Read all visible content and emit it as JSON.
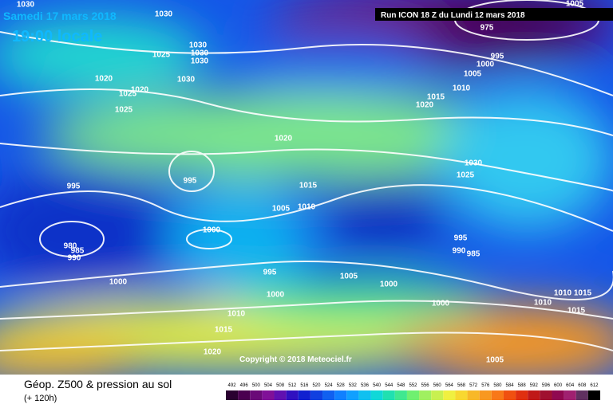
{
  "header": {
    "date": "Samedi 17 mars 2018",
    "time": "19:00 locale",
    "run": "Run ICON 18 Z du Lundi 12 mars 2018"
  },
  "copyright": "Copyright © 2018 Meteociel.fr",
  "footer": {
    "title": "Géop. Z500 & pression au sol",
    "lead": "(+ 120h)"
  },
  "isobar_labels": [
    "1030",
    "1030",
    "1005",
    "1025",
    "1030",
    "1030",
    "1030",
    "1030",
    "1020",
    "1020",
    "1025",
    "1025",
    "975",
    "995",
    "1000",
    "1005",
    "1010",
    "1015",
    "1020",
    "1020",
    "1030",
    "1025",
    "995",
    "995",
    "1015",
    "1005",
    "1010",
    "1000",
    "980",
    "985",
    "990",
    "995",
    "990",
    "985",
    "995",
    "1005",
    "1000",
    "1000",
    "1000",
    "1000",
    "1010",
    "1015",
    "1020",
    "1005",
    "1010",
    "1010",
    "1015",
    "1015"
  ],
  "legend": {
    "labels": [
      "492",
      "496",
      "500",
      "504",
      "508",
      "512",
      "516",
      "520",
      "524",
      "528",
      "532",
      "536",
      "540",
      "544",
      "548",
      "552",
      "556",
      "560",
      "564",
      "568",
      "572",
      "576",
      "580",
      "584",
      "588",
      "592",
      "596",
      "600",
      "604",
      "608",
      "612"
    ],
    "colors": [
      "#2a0030",
      "#4a0050",
      "#6a0a78",
      "#801098",
      "#6010b0",
      "#3010c0",
      "#1020d0",
      "#1040e0",
      "#1060f0",
      "#1080ff",
      "#10a0ff",
      "#10c0f0",
      "#10d8d8",
      "#20e0b0",
      "#40e890",
      "#70f070",
      "#a0f060",
      "#c8f050",
      "#f0f040",
      "#f8d830",
      "#f8b828",
      "#f89820",
      "#f87818",
      "#f05010",
      "#e03010",
      "#c01818",
      "#a01030",
      "#900850",
      "#a02070",
      "#603060",
      "#000000"
    ]
  }
}
